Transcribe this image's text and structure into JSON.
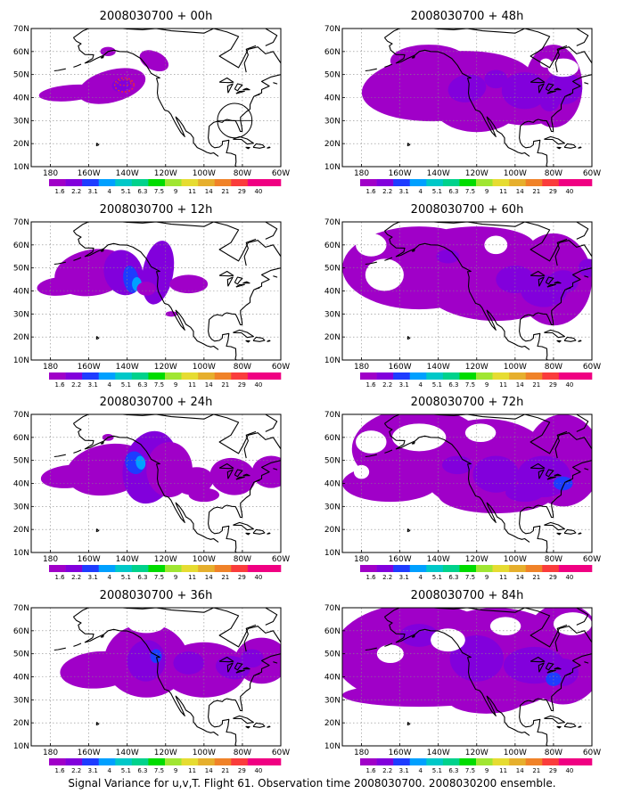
{
  "caption": "Signal Variance for u,v,T. Flight 61. Observation time 2008030700. 2008030200 ensemble.",
  "axes": {
    "x_ticks": [
      "180",
      "160W",
      "140W",
      "120W",
      "100W",
      "80W",
      "60W"
    ],
    "y_ticks": [
      "10N",
      "20N",
      "30N",
      "40N",
      "50N",
      "60N",
      "70N"
    ]
  },
  "colorbar": {
    "labels": [
      "1.6",
      "2.2",
      "3.1",
      "4",
      "5.1",
      "6.3",
      "7.5",
      "9",
      "11",
      "14",
      "21",
      "29",
      "40"
    ],
    "colors": [
      "#a000c8",
      "#8200dc",
      "#1e3cff",
      "#00a0ff",
      "#00c8c8",
      "#00d28c",
      "#00dc00",
      "#a0e632",
      "#e6dc32",
      "#e6af2d",
      "#f08228",
      "#fa3c3c",
      "#f00082"
    ]
  },
  "coastline_color": "#000000",
  "maps": [
    {
      "title": "2008030700 + 00h",
      "intensity": 0,
      "obs_track": true
    },
    {
      "title": "2008030700 + 48h",
      "intensity": 4
    },
    {
      "title": "2008030700 + 12h",
      "intensity": 1
    },
    {
      "title": "2008030700 + 60h",
      "intensity": 5
    },
    {
      "title": "2008030700 + 24h",
      "intensity": 2
    },
    {
      "title": "2008030700 + 72h",
      "intensity": 6
    },
    {
      "title": "2008030700 + 36h",
      "intensity": 3
    },
    {
      "title": "2008030700 + 84h",
      "intensity": 7
    }
  ]
}
